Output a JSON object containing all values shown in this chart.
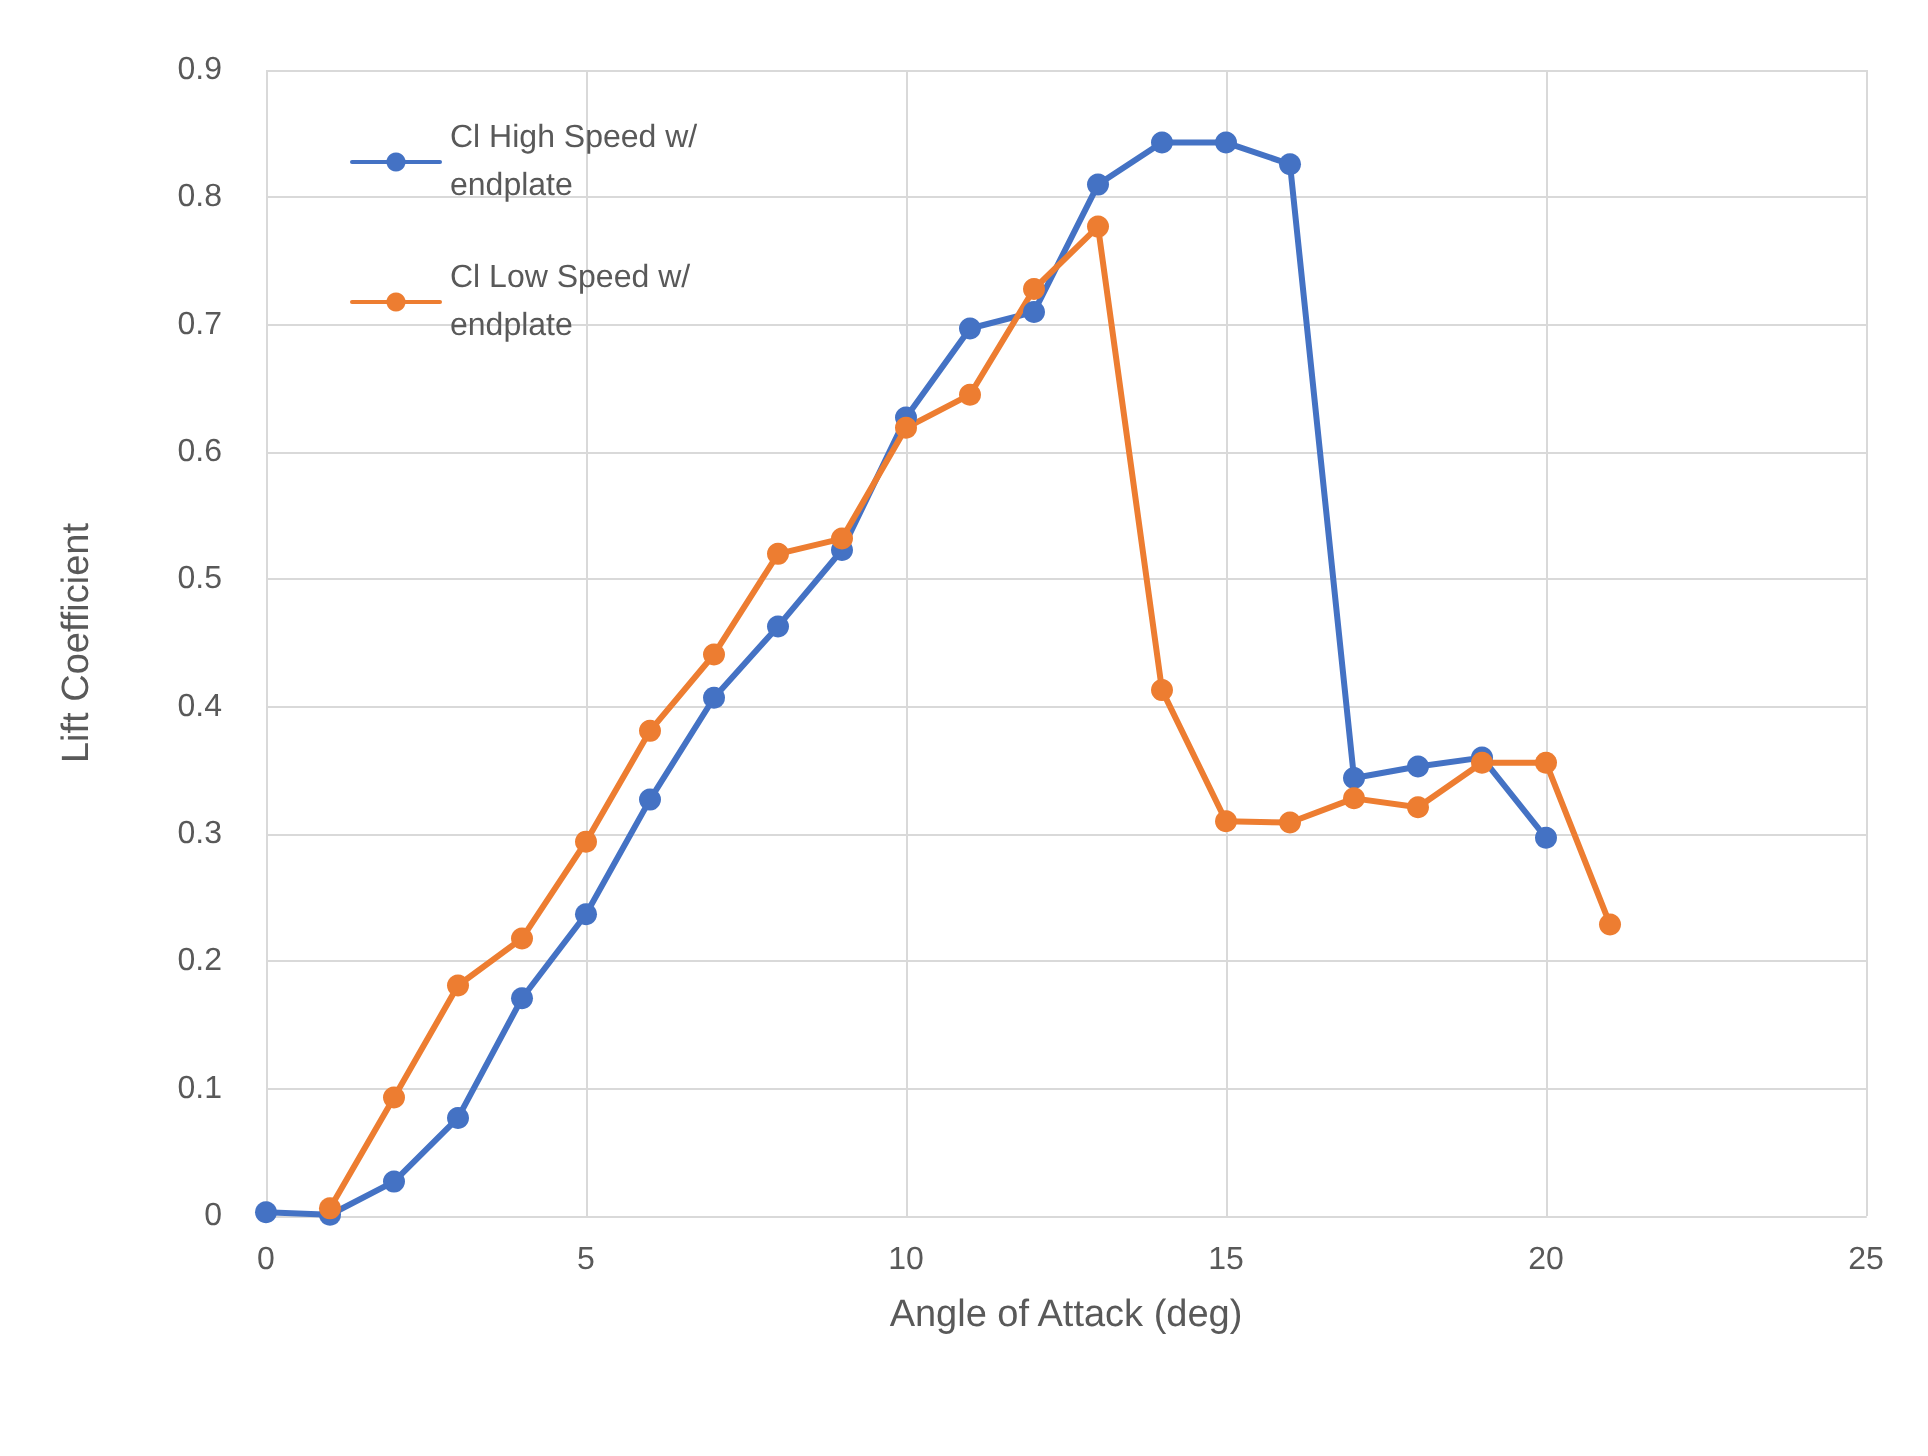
{
  "chart_data": {
    "type": "line",
    "xlabel": "Angle of Attack (deg)",
    "ylabel": "Lift Coefficient",
    "series": [
      {
        "name": "Cl High Speed w/ endplate",
        "color": "#4472c4",
        "x": [
          0,
          1,
          2,
          3,
          4,
          5,
          6,
          7,
          8,
          9,
          10,
          11,
          12,
          13,
          14,
          15,
          16,
          17,
          18,
          19,
          20
        ],
        "values": [
          0.003,
          0.001,
          0.027,
          0.077,
          0.171,
          0.237,
          0.327,
          0.407,
          0.463,
          0.523,
          0.627,
          0.697,
          0.71,
          0.81,
          0.843,
          0.843,
          0.826,
          0.344,
          0.353,
          0.36,
          0.297
        ]
      },
      {
        "name": "Cl Low Speed w/ endplate",
        "color": "#ed7d31",
        "x": [
          1,
          2,
          3,
          4,
          5,
          6,
          7,
          8,
          9,
          10,
          11,
          12,
          13,
          14,
          15,
          16,
          17,
          18,
          19,
          20,
          21
        ],
        "values": [
          0.006,
          0.093,
          0.181,
          0.218,
          0.294,
          0.381,
          0.441,
          0.52,
          0.532,
          0.619,
          0.645,
          0.728,
          0.777,
          0.413,
          0.31,
          0.309,
          0.328,
          0.321,
          0.356,
          0.356,
          0.229
        ]
      }
    ],
    "xlim": [
      0,
      25
    ],
    "xticks": [
      0,
      5,
      10,
      15,
      20,
      25
    ],
    "ylim": [
      0,
      0.9
    ],
    "yticks": [
      0,
      0.1,
      0.2,
      0.3,
      0.4,
      0.5,
      0.6,
      0.7,
      0.8,
      0.9
    ],
    "grid": true,
    "legend": "top left",
    "marker": "circle",
    "line_style": "solid"
  }
}
